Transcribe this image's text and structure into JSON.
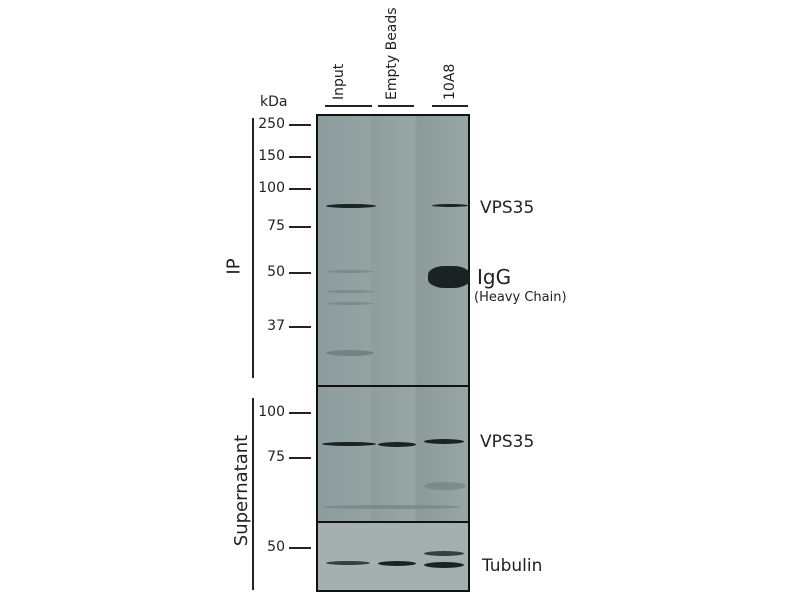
{
  "lanes": [
    "Input",
    "Empty Beads",
    "10A8"
  ],
  "unit": "kDa",
  "groups": {
    "ip": "IP",
    "supernatant": "Supernatant"
  },
  "markers": {
    "ip": [
      "250",
      "150",
      "100",
      "75",
      "50",
      "37"
    ],
    "supernatant": [
      "100",
      "75"
    ],
    "tubulin": [
      "50"
    ]
  },
  "bands": {
    "ip_vps35": "VPS35",
    "igg": "IgG",
    "igg_sub": "(Heavy Chain)",
    "sup_vps35": "VPS35",
    "tubulin": "Tubulin"
  }
}
